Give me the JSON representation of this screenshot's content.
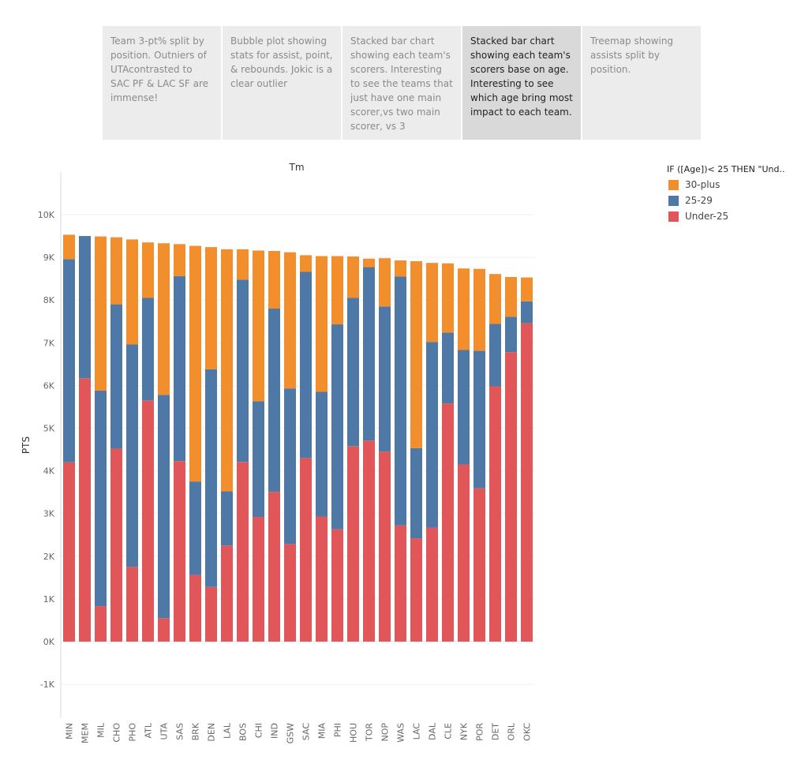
{
  "story": {
    "points": [
      {
        "text": "Team 3-pt% split by position. Outniers of UTAcontrasted to SAC PF & LAC SF are immense!",
        "active": false
      },
      {
        "text": "Bubble plot showing stats for assist, point, & rebounds. Jokic is a clear outlier",
        "active": false
      },
      {
        "text": "Stacked bar chart showing each team's scorers. Interesting to see the teams that just have one main scorer,vs two main scorer, vs 3",
        "active": false
      },
      {
        "text": "Stacked bar chart showing each team's scorers base on age. Interesting to see which age bring most impact to each team.",
        "active": true
      },
      {
        "text": "Treemap showing assists split by position.",
        "active": false
      }
    ]
  },
  "legend": {
    "title": "IF ([Age])< 25 THEN \"Und..",
    "items": [
      {
        "label": "30-plus",
        "color": "#f28e2b"
      },
      {
        "label": "25-29",
        "color": "#4e79a7"
      },
      {
        "label": "Under-25",
        "color": "#e15759"
      }
    ]
  },
  "chart_data": {
    "type": "bar",
    "stacked": true,
    "title": "",
    "xlabel": "Tm",
    "ylabel": "PTS",
    "ylim": [
      -1000,
      10000
    ],
    "yticks": [
      -1000,
      0,
      1000,
      2000,
      3000,
      4000,
      5000,
      6000,
      7000,
      8000,
      9000,
      10000
    ],
    "ytick_labels": [
      "-1K",
      "0K",
      "1K",
      "2K",
      "3K",
      "4K",
      "5K",
      "6K",
      "7K",
      "8K",
      "9K",
      "10K"
    ],
    "grid": true,
    "legend_position": "top-right",
    "categories": [
      "MIN",
      "MEM",
      "MIL",
      "CHO",
      "PHO",
      "ATL",
      "UTA",
      "SAS",
      "BRK",
      "DEN",
      "LAL",
      "BOS",
      "CHI",
      "IND",
      "GSW",
      "SAC",
      "MIA",
      "PHI",
      "HOU",
      "TOR",
      "NOP",
      "WAS",
      "LAC",
      "DAL",
      "CLE",
      "NYK",
      "POR",
      "DET",
      "ORL",
      "OKC"
    ],
    "series": [
      {
        "name": "Under-25",
        "color": "#e15759",
        "values": [
          4200,
          6170,
          830,
          4520,
          1750,
          5650,
          550,
          4230,
          1560,
          1280,
          2250,
          4210,
          2920,
          3510,
          2290,
          4300,
          2930,
          2630,
          4580,
          4710,
          4450,
          2720,
          2420,
          2670,
          5580,
          4150,
          3590,
          5980,
          6780,
          7460
        ]
      },
      {
        "name": "25-29",
        "color": "#4e79a7",
        "values": [
          4760,
          3330,
          5050,
          3380,
          5210,
          2400,
          5230,
          4330,
          2190,
          5100,
          1270,
          4270,
          2710,
          4290,
          3640,
          4360,
          2920,
          4800,
          3470,
          4060,
          3400,
          5830,
          2110,
          4350,
          1660,
          2680,
          3220,
          1460,
          830,
          510
        ]
      },
      {
        "name": "30-plus",
        "color": "#f28e2b",
        "values": [
          570,
          0,
          3610,
          1570,
          2460,
          1300,
          3550,
          750,
          5520,
          2860,
          5670,
          710,
          3530,
          1350,
          3190,
          390,
          3180,
          1600,
          970,
          200,
          1130,
          380,
          4380,
          1850,
          1620,
          1910,
          1920,
          1170,
          930,
          560
        ]
      }
    ]
  }
}
